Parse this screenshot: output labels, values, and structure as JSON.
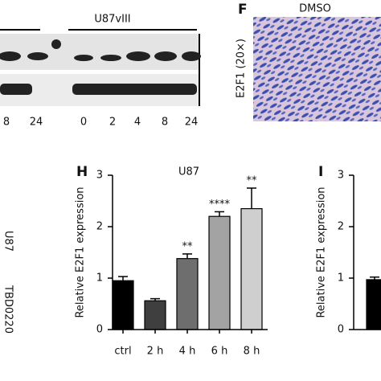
{
  "panel_e": {
    "group_label": "U87vIII",
    "lanes_left": [
      "8",
      "24"
    ],
    "lanes_right": [
      "0",
      "2",
      "4",
      "8",
      "24"
    ]
  },
  "panel_f": {
    "letter": "F",
    "title": "DMSO",
    "side_label": "E2F1 (20×)"
  },
  "side_labels": [
    "U87",
    "TBD0220"
  ],
  "chart_data": [
    {
      "type": "bar",
      "letter": "H",
      "title": "U87",
      "y_label": "Relative E2F1 expression",
      "categories": [
        "ctrl",
        "2 h",
        "4 h",
        "6 h",
        "8 h"
      ],
      "values": [
        0.95,
        0.56,
        1.38,
        2.2,
        2.35
      ],
      "errors": [
        0.08,
        0.04,
        0.09,
        0.09,
        0.4
      ],
      "annotations": [
        null,
        null,
        "**",
        "****",
        "**"
      ],
      "colors": [
        "#000000",
        "#3f3f3f",
        "#6e6e6e",
        "#a3a3a3",
        "#cfcfcf"
      ],
      "ylim": [
        0,
        3
      ],
      "yticks": [
        0,
        1,
        2,
        3
      ]
    },
    {
      "type": "bar",
      "letter": "I",
      "y_label": "Relative E2F1 expression",
      "categories": [
        null
      ],
      "values": [
        0.97
      ],
      "errors": [
        0.05
      ],
      "colors": [
        "#000000"
      ],
      "ylim": [
        0,
        3
      ],
      "yticks": [
        0,
        1,
        2,
        3
      ]
    }
  ]
}
